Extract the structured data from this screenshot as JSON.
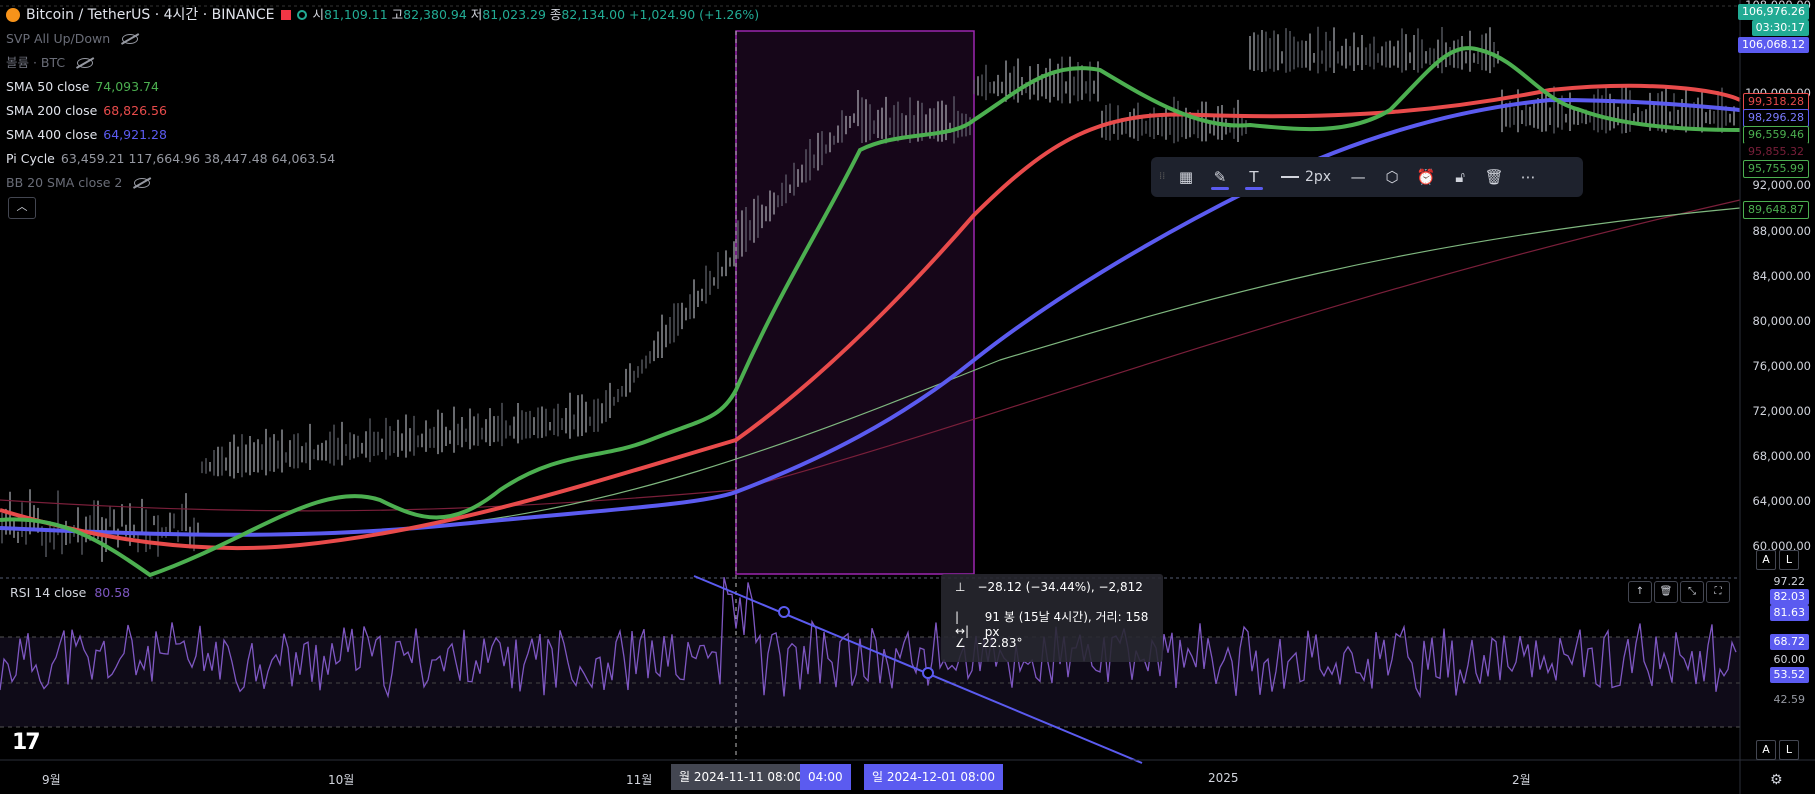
{
  "header": {
    "symbol": "Bitcoin / TetherUS · 4시간 · BINANCE",
    "open_label": "시",
    "open": "81,109.11",
    "high_label": "고",
    "high": "82,380.94",
    "low_label": "저",
    "low": "81,023.29",
    "close_label": "종",
    "close": "82,134.00",
    "change": "+1,024.90 (+1.26%)"
  },
  "indicators": [
    {
      "label": "SVP All Up/Down",
      "value": "",
      "color": "#6a6d78",
      "hidden": true
    },
    {
      "label": "볼륨 · BTC",
      "value": "",
      "color": "#6a6d78",
      "hidden": true
    },
    {
      "label": "SMA 50 close",
      "value": "74,093.74",
      "color": "#4caf50"
    },
    {
      "label": "SMA 200 close",
      "value": "68,826.56",
      "color": "#e84b4b"
    },
    {
      "label": "SMA 400 close",
      "value": "64,921.28",
      "color": "#5b5bf0"
    },
    {
      "label": "Pi Cycle",
      "value": "63,459.21  117,664.96  38,447.48  64,063.54",
      "color": "#9598a1"
    },
    {
      "label": "BB 20 SMA close 2",
      "value": "",
      "color": "#6a6d78",
      "hidden": true
    }
  ],
  "toolbar": {
    "width_label": "2px"
  },
  "price_axis": {
    "ticks": [
      "108,000.00",
      "100,000.00",
      "92,000.00",
      "88,000.00",
      "84,000.00",
      "80,000.00",
      "76,000.00",
      "72,000.00",
      "68,000.00",
      "64,000.00",
      "60,000.00"
    ],
    "labels": [
      {
        "text": "106,976.26",
        "bg": "#22ab94"
      },
      {
        "text": "03:30:17",
        "bg": "#22ab94"
      },
      {
        "text": "106,068.12",
        "bg": "#5b5bf0"
      },
      {
        "text": "99,318.28",
        "bg": "#000000",
        "border": "#e84b4b",
        "color": "#e84b4b"
      },
      {
        "text": "98,296.28",
        "bg": "#000000",
        "border": "#5b5bf0",
        "color": "#7b7bff"
      },
      {
        "text": "96,559.46",
        "bg": "#000000",
        "border": "#4caf50",
        "color": "#4caf50"
      },
      {
        "text": "95,855.32",
        "bg": "#000000",
        "border": "#000000",
        "color": "#7a1f3a"
      },
      {
        "text": "95,755.99",
        "bg": "#000000",
        "border": "#4caf50",
        "color": "#4caf50"
      },
      {
        "text": "89,648.87",
        "bg": "#000000",
        "border": "#4caf50",
        "color": "#4caf50"
      }
    ]
  },
  "rsi": {
    "label": "RSI 14 close",
    "value": "80.58",
    "axis_labels": [
      {
        "text": "97.22",
        "bg": "#000000",
        "color": "#d1d4dc"
      },
      {
        "text": "82.03",
        "bg": "#5b5bf0",
        "color": "#ffffff"
      },
      {
        "text": "81.63",
        "bg": "#5b5bf0",
        "color": "#ffffff"
      },
      {
        "text": "68.72",
        "bg": "#5b5bf0",
        "color": "#ffffff"
      },
      {
        "text": "60.00",
        "bg": "#000000",
        "color": "#d1d4dc"
      },
      {
        "text": "53.52",
        "bg": "#5b5bf0",
        "color": "#ffffff"
      },
      {
        "text": "42.59",
        "bg": "#000000",
        "color": "#9598a1"
      }
    ]
  },
  "measure": {
    "line1": "−28.12 (−34.44%), −2,812",
    "line2": "91 봉 (15날 4시간), 거리: 158 px",
    "line3": "-22.83°"
  },
  "time_axis": {
    "ticks": [
      "9월",
      "10월",
      "11월",
      "2025",
      "2월"
    ],
    "start_label": "월 2024-11-11   08:00",
    "mid_label": "04:00",
    "end_label": "일 2024-12-01   08:00"
  },
  "colors": {
    "sma50": "#4caf50",
    "sma200": "#e84b4b",
    "sma400": "#5b5bf0",
    "rsi": "#7e57c2",
    "box": "#9c27b0"
  }
}
